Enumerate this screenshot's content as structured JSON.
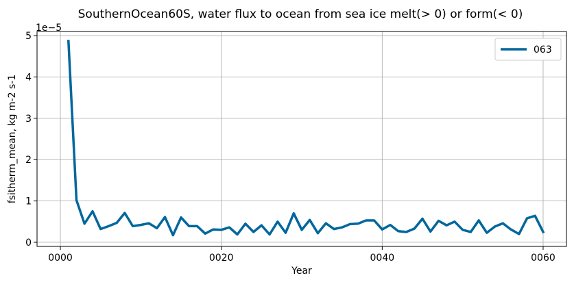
{
  "chart_data": {
    "type": "line",
    "title": "SouthernOcean60S, water flux to ocean from sea ice melt(> 0) or form(< 0)",
    "xlabel": "Year",
    "ylabel": "fsitherm_mean, kg m-2 s-1",
    "y_offset_label": "1e−5",
    "xlim": [
      -2.9,
      62.9
    ],
    "ylim": [
      -0.1,
      5.1
    ],
    "x_ticks": [
      {
        "value": 0,
        "label": "0000"
      },
      {
        "value": 20,
        "label": "0020"
      },
      {
        "value": 40,
        "label": "0040"
      },
      {
        "value": 60,
        "label": "0060"
      }
    ],
    "y_ticks": [
      {
        "value": 0,
        "label": "0"
      },
      {
        "value": 1,
        "label": "1"
      },
      {
        "value": 2,
        "label": "2"
      },
      {
        "value": 3,
        "label": "3"
      },
      {
        "value": 4,
        "label": "4"
      },
      {
        "value": 5,
        "label": "5"
      }
    ],
    "grid": true,
    "legend_position": "top-right",
    "series": [
      {
        "name": "063",
        "color": "#00679c",
        "x": [
          1,
          2,
          3,
          4,
          5,
          6,
          7,
          8,
          9,
          10,
          11,
          12,
          13,
          14,
          15,
          16,
          17,
          18,
          19,
          20,
          21,
          22,
          23,
          24,
          25,
          26,
          27,
          28,
          29,
          30,
          31,
          32,
          33,
          34,
          35,
          36,
          37,
          38,
          39,
          40,
          41,
          42,
          43,
          44,
          45,
          46,
          47,
          48,
          49,
          50,
          51,
          52,
          53,
          54,
          55,
          56,
          57,
          58,
          59,
          60
        ],
        "values": [
          4.87,
          1.02,
          0.45,
          0.75,
          0.32,
          0.39,
          0.47,
          0.71,
          0.39,
          0.42,
          0.46,
          0.34,
          0.61,
          0.17,
          0.6,
          0.39,
          0.39,
          0.21,
          0.31,
          0.3,
          0.36,
          0.19,
          0.45,
          0.25,
          0.41,
          0.19,
          0.5,
          0.23,
          0.7,
          0.3,
          0.54,
          0.22,
          0.46,
          0.32,
          0.36,
          0.44,
          0.45,
          0.53,
          0.53,
          0.31,
          0.42,
          0.27,
          0.25,
          0.33,
          0.57,
          0.26,
          0.52,
          0.41,
          0.5,
          0.3,
          0.25,
          0.53,
          0.23,
          0.38,
          0.46,
          0.31,
          0.2,
          0.58,
          0.64,
          0.25
        ]
      }
    ]
  }
}
